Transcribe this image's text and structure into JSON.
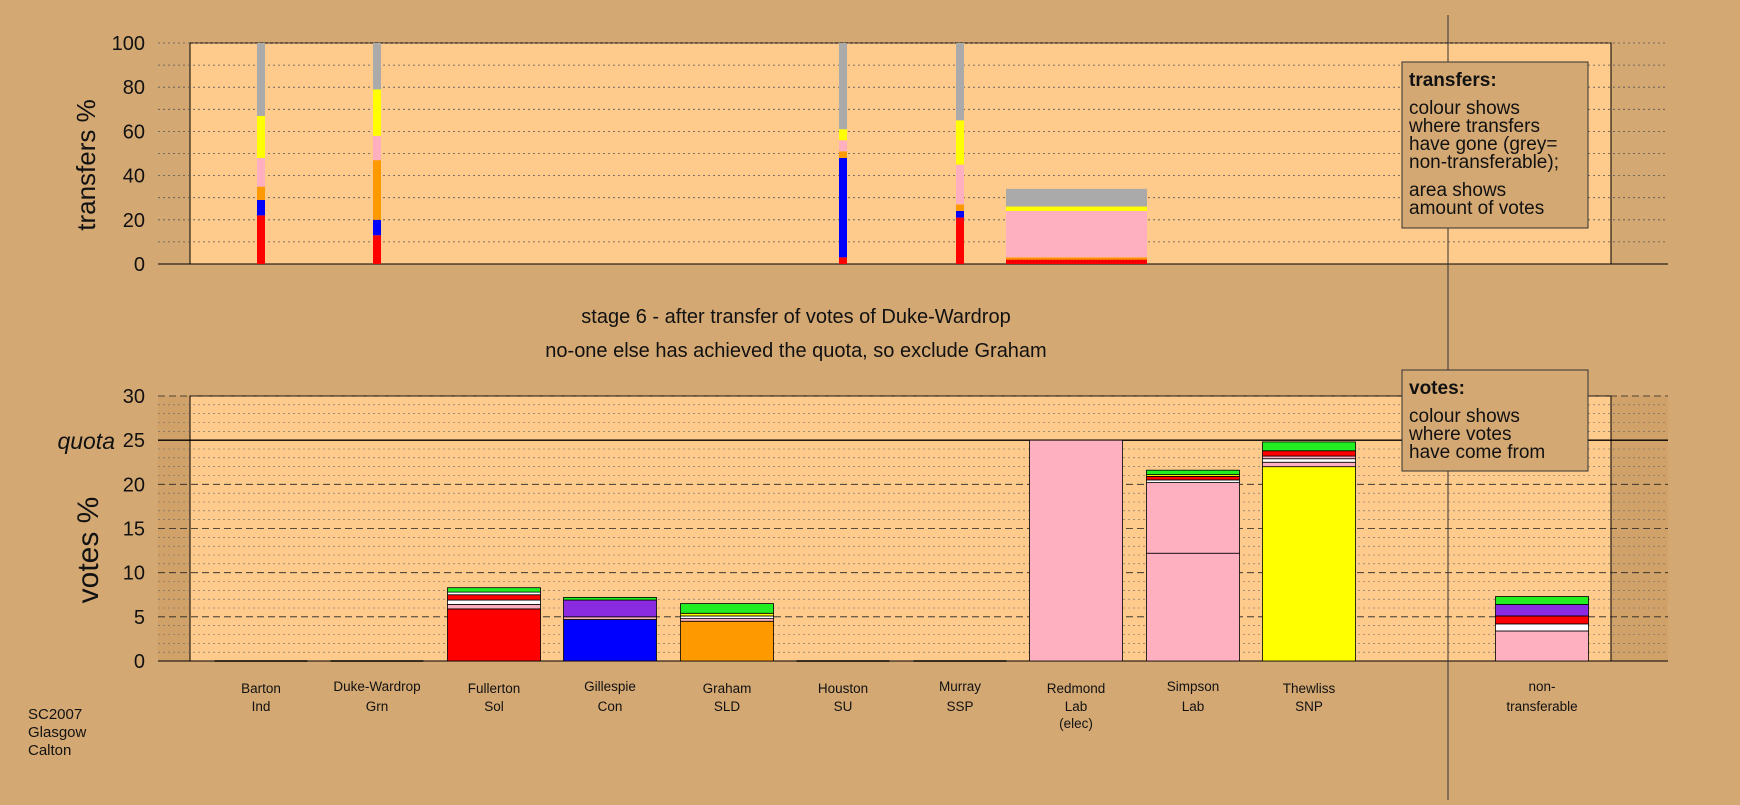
{
  "chart_data": [
    {
      "type": "bar",
      "ylabel": "transfers %",
      "ylim": [
        0,
        100
      ],
      "yticks": [
        0,
        20,
        40,
        60,
        80,
        100
      ],
      "grid": true,
      "legend_box": {
        "title": "transfers:",
        "lines1": [
          "colour shows",
          "where transfers",
          "have gone (grey=",
          "non-transferable);"
        ],
        "lines2": [
          "area shows",
          "amount of votes"
        ]
      },
      "colors": {
        "Sol": "#ff0000",
        "Con": "#0000ff",
        "SLD": "#ff9900",
        "Lab": "#ffb0c0",
        "SNP": "#ffff00",
        "Grn": "#22ee22",
        "SSP": "#ff0000",
        "Ind": "#ffffff",
        "non-transferable": "#aaaaaa",
        "SU": "#8a2be2"
      },
      "columns": [
        {
          "candidate": "Barton",
          "segments": [
            {
              "party": "Sol",
              "value": 22
            },
            {
              "party": "Con",
              "value": 7
            },
            {
              "party": "SLD",
              "value": 6
            },
            {
              "party": "Lab",
              "value": 13
            },
            {
              "party": "SNP",
              "value": 19
            },
            {
              "party": "non-transferable",
              "value": 33
            }
          ]
        },
        {
          "candidate": "Duke-Wardrop",
          "segments": [
            {
              "party": "Sol",
              "value": 13
            },
            {
              "party": "Con",
              "value": 7
            },
            {
              "party": "SLD",
              "value": 27
            },
            {
              "party": "Lab",
              "value": 11
            },
            {
              "party": "SNP",
              "value": 21
            },
            {
              "party": "non-transferable",
              "value": 21
            }
          ]
        },
        {
          "candidate": "Houston",
          "segments": [
            {
              "party": "Sol",
              "value": 3
            },
            {
              "party": "Con",
              "value": 45
            },
            {
              "party": "SLD",
              "value": 3
            },
            {
              "party": "Lab",
              "value": 5
            },
            {
              "party": "SNP",
              "value": 5
            },
            {
              "party": "non-transferable",
              "value": 39
            }
          ]
        },
        {
          "candidate": "Murray",
          "segments": [
            {
              "party": "Sol",
              "value": 21
            },
            {
              "party": "Con",
              "value": 3
            },
            {
              "party": "SLD",
              "value": 3
            },
            {
              "party": "Lab",
              "value": 18
            },
            {
              "party": "SNP",
              "value": 20
            },
            {
              "party": "non-transferable",
              "value": 35
            }
          ]
        },
        {
          "candidate": "Redmond",
          "wide": true,
          "segments": [
            {
              "party": "Sol",
              "value": 2
            },
            {
              "party": "SLD",
              "value": 1
            },
            {
              "party": "Lab",
              "value": 21
            },
            {
              "party": "SNP",
              "value": 2
            },
            {
              "party": "non-transferable",
              "value": 8
            }
          ]
        }
      ]
    },
    {
      "type": "bar",
      "ylabel": "votes %",
      "ylim": [
        0,
        30
      ],
      "yticks": [
        0,
        5,
        10,
        15,
        20,
        25,
        30
      ],
      "quota": 25,
      "quota_label": "quota",
      "grid": true,
      "legend_box": {
        "title": "votes:",
        "lines1": [
          "colour shows",
          "where votes",
          "have come from"
        ]
      },
      "categories": [
        {
          "name": "Barton",
          "party": "Ind"
        },
        {
          "name": "Duke-Wardrop",
          "party": "Grn"
        },
        {
          "name": "Fullerton",
          "party": "Sol"
        },
        {
          "name": "Gillespie",
          "party": "Con"
        },
        {
          "name": "Graham",
          "party": "SLD"
        },
        {
          "name": "Houston",
          "party": "SU"
        },
        {
          "name": "Murray",
          "party": "SSP"
        },
        {
          "name": "Redmond",
          "party": "Lab",
          "note": "(elec)"
        },
        {
          "name": "Simpson",
          "party": "Lab"
        },
        {
          "name": "Thewliss",
          "party": "SNP"
        },
        {
          "name": "non-",
          "party": "transferable"
        }
      ],
      "bars": [
        {
          "candidate": "Barton",
          "segments": []
        },
        {
          "candidate": "Duke-Wardrop",
          "segments": []
        },
        {
          "candidate": "Fullerton",
          "segments": [
            {
              "color": "#ff0000",
              "value": 5.9
            },
            {
              "color": "#ffb0c0",
              "value": 0.5
            },
            {
              "color": "#ffffff",
              "value": 0.5
            },
            {
              "color": "#ff0000",
              "value": 0.6
            },
            {
              "color": "#ffffff",
              "value": 0.3
            },
            {
              "color": "#22ee22",
              "value": 0.5
            }
          ]
        },
        {
          "candidate": "Gillespie",
          "segments": [
            {
              "color": "#0000ff",
              "value": 4.7
            },
            {
              "color": "#ffb0c0",
              "value": 0.3
            },
            {
              "color": "#8a2be2",
              "value": 1.9
            },
            {
              "color": "#22ee22",
              "value": 0.3
            }
          ]
        },
        {
          "candidate": "Graham",
          "segments": [
            {
              "color": "#ff9900",
              "value": 4.5
            },
            {
              "color": "#ffb0c0",
              "value": 0.3
            },
            {
              "color": "#ffffff",
              "value": 0.3
            },
            {
              "color": "#ffff00",
              "value": 0.3
            },
            {
              "color": "#22ee22",
              "value": 1.1
            }
          ]
        },
        {
          "candidate": "Houston",
          "segments": []
        },
        {
          "candidate": "Murray",
          "segments": []
        },
        {
          "candidate": "Redmond",
          "segments": [
            {
              "color": "#ffb0c0",
              "value": 25.0
            }
          ]
        },
        {
          "candidate": "Simpson",
          "segments": [
            {
              "color": "#ffb0c0",
              "value": 12.2
            },
            {
              "color": "#ffb0c0",
              "value": 8.0
            },
            {
              "color": "#ffffff",
              "value": 0.3
            },
            {
              "color": "#ff0000",
              "value": 0.4
            },
            {
              "color": "#ffff00",
              "value": 0.2
            },
            {
              "color": "#22ee22",
              "value": 0.5
            }
          ]
        },
        {
          "candidate": "Thewliss",
          "segments": [
            {
              "color": "#ffff00",
              "value": 22.0
            },
            {
              "color": "#ffb0c0",
              "value": 0.5
            },
            {
              "color": "#ffffff",
              "value": 0.4
            },
            {
              "color": "#ffb0c0",
              "value": 0.3
            },
            {
              "color": "#ff0000",
              "value": 0.6
            },
            {
              "color": "#22ee22",
              "value": 1.0
            }
          ]
        },
        {
          "candidate": "non-transferable",
          "segments": [
            {
              "color": "#ffb0c0",
              "value": 3.4
            },
            {
              "color": "#ffffff",
              "value": 0.8
            },
            {
              "color": "#ff0000",
              "value": 0.9
            },
            {
              "color": "#8a2be2",
              "value": 1.3
            },
            {
              "color": "#22ee22",
              "value": 0.9
            }
          ]
        }
      ]
    }
  ],
  "stage_title": "stage 6 - after transfer of votes of Duke-Wardrop",
  "stage_subtitle": "no-one else has achieved the quota, so exclude Graham",
  "footer_lines": [
    "SC2007",
    "Glasgow",
    "Calton"
  ]
}
